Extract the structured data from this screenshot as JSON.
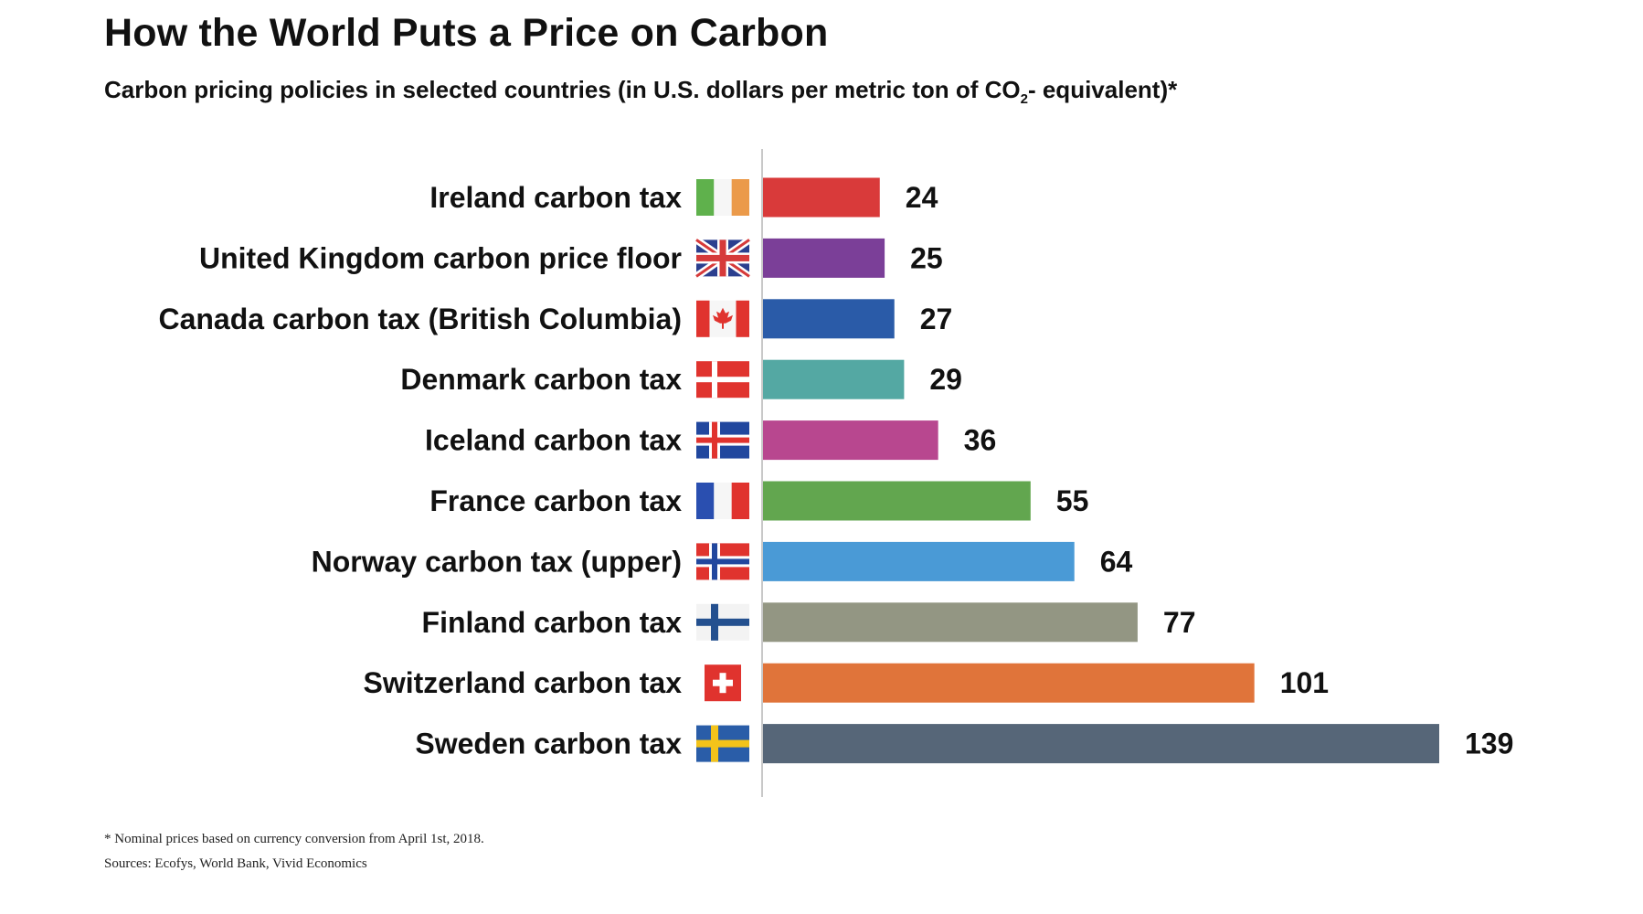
{
  "chart_data": {
    "type": "bar",
    "orientation": "horizontal",
    "title": "How the World Puts a Price on Carbon",
    "subtitle": {
      "before": "Carbon pricing policies in selected countries (in U.S. dollars per metric ton of CO",
      "subscript": "2",
      "after": "- equivalent)*"
    },
    "categories": [
      "Ireland carbon tax",
      "United Kingdom carbon price floor",
      "Canada carbon tax (British Columbia)",
      "Denmark carbon tax",
      "Iceland carbon tax",
      "France carbon tax",
      "Norway carbon tax (upper)",
      "Finland carbon tax",
      "Switzerland carbon tax",
      "Sweden carbon tax"
    ],
    "values": [
      24,
      25,
      27,
      29,
      36,
      55,
      64,
      77,
      101,
      139
    ],
    "bar_colors": [
      "#d93a3a",
      "#7b3f98",
      "#2a5ba8",
      "#54a8a3",
      "#b8478f",
      "#62a64f",
      "#4a9ad6",
      "#939683",
      "#e0743a",
      "#566678"
    ],
    "flags": [
      "ireland-flag",
      "united-kingdom-flag",
      "canada-flag",
      "denmark-flag",
      "iceland-flag",
      "france-flag",
      "norway-flag",
      "finland-flag",
      "switzerland-flag",
      "sweden-flag"
    ],
    "xlim": [
      0,
      139
    ],
    "grid": false,
    "data_labels": true,
    "footnote": "* Nominal prices based on currency conversion from April 1st, 2018.",
    "sources": "Sources: Ecofys, World Bank, Vivid Economics"
  }
}
